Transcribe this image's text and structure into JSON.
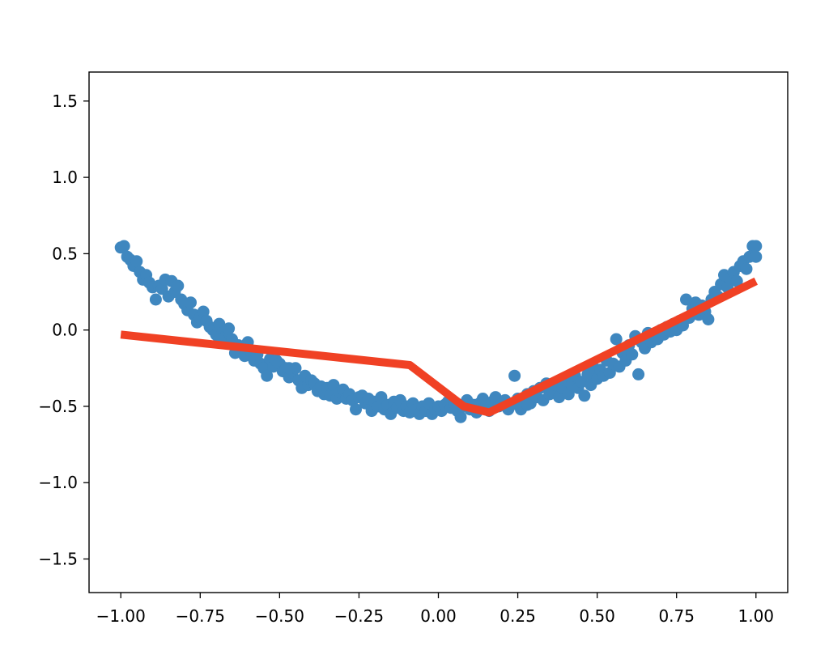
{
  "chart_data": {
    "type": "scatter",
    "title": "",
    "xlabel": "",
    "ylabel": "",
    "xlim": [
      -1.1,
      1.1
    ],
    "ylim": [
      -1.72,
      1.69
    ],
    "grid": false,
    "x_ticks": [
      -1.0,
      -0.75,
      -0.5,
      -0.25,
      0.0,
      0.25,
      0.5,
      0.75,
      1.0
    ],
    "x_tick_labels": [
      "−1.00",
      "−0.75",
      "−0.50",
      "−0.25",
      "0.00",
      "0.25",
      "0.50",
      "0.75",
      "1.00"
    ],
    "y_ticks": [
      -1.5,
      -1.0,
      -0.5,
      0.0,
      0.5,
      1.0,
      1.5
    ],
    "y_tick_labels": [
      "−1.5",
      "−1.0",
      "−0.5",
      "0.0",
      "0.5",
      "1.0",
      "1.5"
    ],
    "series": [
      {
        "kind": "scatter",
        "color": "#3f87bf",
        "points": [
          [
            -1.0,
            0.54
          ],
          [
            -0.99,
            0.55
          ],
          [
            -0.98,
            0.48
          ],
          [
            -0.97,
            0.46
          ],
          [
            -0.96,
            0.42
          ],
          [
            -0.95,
            0.45
          ],
          [
            -0.94,
            0.38
          ],
          [
            -0.93,
            0.33
          ],
          [
            -0.92,
            0.36
          ],
          [
            -0.91,
            0.31
          ],
          [
            -0.9,
            0.28
          ],
          [
            -0.89,
            0.2
          ],
          [
            -0.88,
            0.29
          ],
          [
            -0.87,
            0.27
          ],
          [
            -0.86,
            0.33
          ],
          [
            -0.85,
            0.22
          ],
          [
            -0.84,
            0.32
          ],
          [
            -0.83,
            0.25
          ],
          [
            -0.82,
            0.29
          ],
          [
            -0.81,
            0.2
          ],
          [
            -0.8,
            0.17
          ],
          [
            -0.79,
            0.13
          ],
          [
            -0.78,
            0.18
          ],
          [
            -0.77,
            0.1
          ],
          [
            -0.76,
            0.05
          ],
          [
            -0.75,
            0.08
          ],
          [
            -0.74,
            0.12
          ],
          [
            -0.73,
            0.06
          ],
          [
            -0.72,
            0.02
          ],
          [
            -0.71,
            0.0
          ],
          [
            -0.7,
            -0.03
          ],
          [
            -0.69,
            0.04
          ],
          [
            -0.68,
            -0.02
          ],
          [
            -0.67,
            -0.04
          ],
          [
            -0.66,
            0.01
          ],
          [
            -0.65,
            -0.06
          ],
          [
            -0.64,
            -0.15
          ],
          [
            -0.63,
            -0.1
          ],
          [
            -0.62,
            -0.12
          ],
          [
            -0.61,
            -0.17
          ],
          [
            -0.6,
            -0.08
          ],
          [
            -0.59,
            -0.14
          ],
          [
            -0.58,
            -0.2
          ],
          [
            -0.57,
            -0.16
          ],
          [
            -0.56,
            -0.22
          ],
          [
            -0.55,
            -0.25
          ],
          [
            -0.54,
            -0.3
          ],
          [
            -0.53,
            -0.19
          ],
          [
            -0.52,
            -0.24
          ],
          [
            -0.51,
            -0.2
          ],
          [
            -0.5,
            -0.22
          ],
          [
            -0.49,
            -0.27
          ],
          [
            -0.48,
            -0.25
          ],
          [
            -0.47,
            -0.31
          ],
          [
            -0.46,
            -0.28
          ],
          [
            -0.45,
            -0.25
          ],
          [
            -0.44,
            -0.33
          ],
          [
            -0.43,
            -0.38
          ],
          [
            -0.42,
            -0.3
          ],
          [
            -0.41,
            -0.36
          ],
          [
            -0.4,
            -0.33
          ],
          [
            -0.39,
            -0.35
          ],
          [
            -0.38,
            -0.4
          ],
          [
            -0.37,
            -0.37
          ],
          [
            -0.36,
            -0.42
          ],
          [
            -0.35,
            -0.38
          ],
          [
            -0.34,
            -0.43
          ],
          [
            -0.33,
            -0.36
          ],
          [
            -0.32,
            -0.45
          ],
          [
            -0.31,
            -0.41
          ],
          [
            -0.3,
            -0.39
          ],
          [
            -0.29,
            -0.45
          ],
          [
            -0.28,
            -0.42
          ],
          [
            -0.27,
            -0.46
          ],
          [
            -0.26,
            -0.52
          ],
          [
            -0.25,
            -0.44
          ],
          [
            -0.24,
            -0.43
          ],
          [
            -0.23,
            -0.48
          ],
          [
            -0.22,
            -0.45
          ],
          [
            -0.21,
            -0.53
          ],
          [
            -0.2,
            -0.47
          ],
          [
            -0.19,
            -0.5
          ],
          [
            -0.18,
            -0.44
          ],
          [
            -0.17,
            -0.52
          ],
          [
            -0.16,
            -0.49
          ],
          [
            -0.15,
            -0.55
          ],
          [
            -0.14,
            -0.47
          ],
          [
            -0.13,
            -0.51
          ],
          [
            -0.12,
            -0.46
          ],
          [
            -0.11,
            -0.53
          ],
          [
            -0.1,
            -0.5
          ],
          [
            -0.09,
            -0.54
          ],
          [
            -0.08,
            -0.48
          ],
          [
            -0.07,
            -0.52
          ],
          [
            -0.06,
            -0.55
          ],
          [
            -0.05,
            -0.5
          ],
          [
            -0.04,
            -0.53
          ],
          [
            -0.03,
            -0.48
          ],
          [
            -0.02,
            -0.55
          ],
          [
            -0.01,
            -0.52
          ],
          [
            0.0,
            -0.5
          ],
          [
            0.01,
            -0.53
          ],
          [
            0.02,
            -0.49
          ],
          [
            0.03,
            -0.47
          ],
          [
            0.04,
            -0.51
          ],
          [
            0.05,
            -0.48
          ],
          [
            0.06,
            -0.53
          ],
          [
            0.07,
            -0.57
          ],
          [
            0.08,
            -0.5
          ],
          [
            0.09,
            -0.46
          ],
          [
            0.1,
            -0.52
          ],
          [
            0.11,
            -0.49
          ],
          [
            0.12,
            -0.54
          ],
          [
            0.13,
            -0.48
          ],
          [
            0.14,
            -0.45
          ],
          [
            0.15,
            -0.5
          ],
          [
            0.16,
            -0.53
          ],
          [
            0.17,
            -0.47
          ],
          [
            0.18,
            -0.44
          ],
          [
            0.19,
            -0.5
          ],
          [
            0.2,
            -0.48
          ],
          [
            0.21,
            -0.46
          ],
          [
            0.22,
            -0.52
          ],
          [
            0.23,
            -0.49
          ],
          [
            0.24,
            -0.3
          ],
          [
            0.25,
            -0.45
          ],
          [
            0.26,
            -0.52
          ],
          [
            0.27,
            -0.47
          ],
          [
            0.28,
            -0.42
          ],
          [
            0.29,
            -0.48
          ],
          [
            0.3,
            -0.4
          ],
          [
            0.31,
            -0.44
          ],
          [
            0.32,
            -0.38
          ],
          [
            0.33,
            -0.46
          ],
          [
            0.34,
            -0.35
          ],
          [
            0.35,
            -0.42
          ],
          [
            0.36,
            -0.4
          ],
          [
            0.37,
            -0.36
          ],
          [
            0.38,
            -0.44
          ],
          [
            0.39,
            -0.38
          ],
          [
            0.4,
            -0.33
          ],
          [
            0.41,
            -0.42
          ],
          [
            0.42,
            -0.36
          ],
          [
            0.43,
            -0.3
          ],
          [
            0.44,
            -0.38
          ],
          [
            0.45,
            -0.34
          ],
          [
            0.46,
            -0.43
          ],
          [
            0.47,
            -0.29
          ],
          [
            0.48,
            -0.36
          ],
          [
            0.49,
            -0.25
          ],
          [
            0.5,
            -0.32
          ],
          [
            0.51,
            -0.26
          ],
          [
            0.52,
            -0.3
          ],
          [
            0.53,
            -0.2
          ],
          [
            0.54,
            -0.28
          ],
          [
            0.55,
            -0.22
          ],
          [
            0.56,
            -0.06
          ],
          [
            0.57,
            -0.24
          ],
          [
            0.58,
            -0.15
          ],
          [
            0.59,
            -0.2
          ],
          [
            0.6,
            -0.1
          ],
          [
            0.61,
            -0.16
          ],
          [
            0.62,
            -0.04
          ],
          [
            0.63,
            -0.29
          ],
          [
            0.64,
            -0.08
          ],
          [
            0.65,
            -0.12
          ],
          [
            0.66,
            -0.02
          ],
          [
            0.67,
            -0.08
          ],
          [
            0.68,
            -0.03
          ],
          [
            0.69,
            -0.06
          ],
          [
            0.7,
            0.0
          ],
          [
            0.71,
            -0.03
          ],
          [
            0.72,
            0.02
          ],
          [
            0.73,
            -0.01
          ],
          [
            0.74,
            0.04
          ],
          [
            0.75,
            0.0
          ],
          [
            0.76,
            0.06
          ],
          [
            0.77,
            0.03
          ],
          [
            0.78,
            0.2
          ],
          [
            0.79,
            0.08
          ],
          [
            0.8,
            0.14
          ],
          [
            0.81,
            0.18
          ],
          [
            0.82,
            0.1
          ],
          [
            0.83,
            0.16
          ],
          [
            0.84,
            0.12
          ],
          [
            0.85,
            0.07
          ],
          [
            0.86,
            0.2
          ],
          [
            0.87,
            0.25
          ],
          [
            0.88,
            0.22
          ],
          [
            0.89,
            0.3
          ],
          [
            0.9,
            0.36
          ],
          [
            0.91,
            0.28
          ],
          [
            0.92,
            0.34
          ],
          [
            0.93,
            0.38
          ],
          [
            0.94,
            0.32
          ],
          [
            0.95,
            0.42
          ],
          [
            0.96,
            0.45
          ],
          [
            0.97,
            0.4
          ],
          [
            0.98,
            0.48
          ],
          [
            0.99,
            0.55
          ],
          [
            1.0,
            0.55
          ],
          [
            1.0,
            0.48
          ],
          [
            -0.69,
            -0.06
          ],
          [
            -0.47,
            -0.25
          ],
          [
            0.28,
            -0.49
          ]
        ]
      },
      {
        "kind": "line",
        "color": "#f04124",
        "x": [
          -1.0,
          -0.09,
          0.08,
          0.16,
          1.0
        ],
        "y": [
          -0.03,
          -0.23,
          -0.5,
          -0.54,
          0.32
        ]
      }
    ]
  }
}
